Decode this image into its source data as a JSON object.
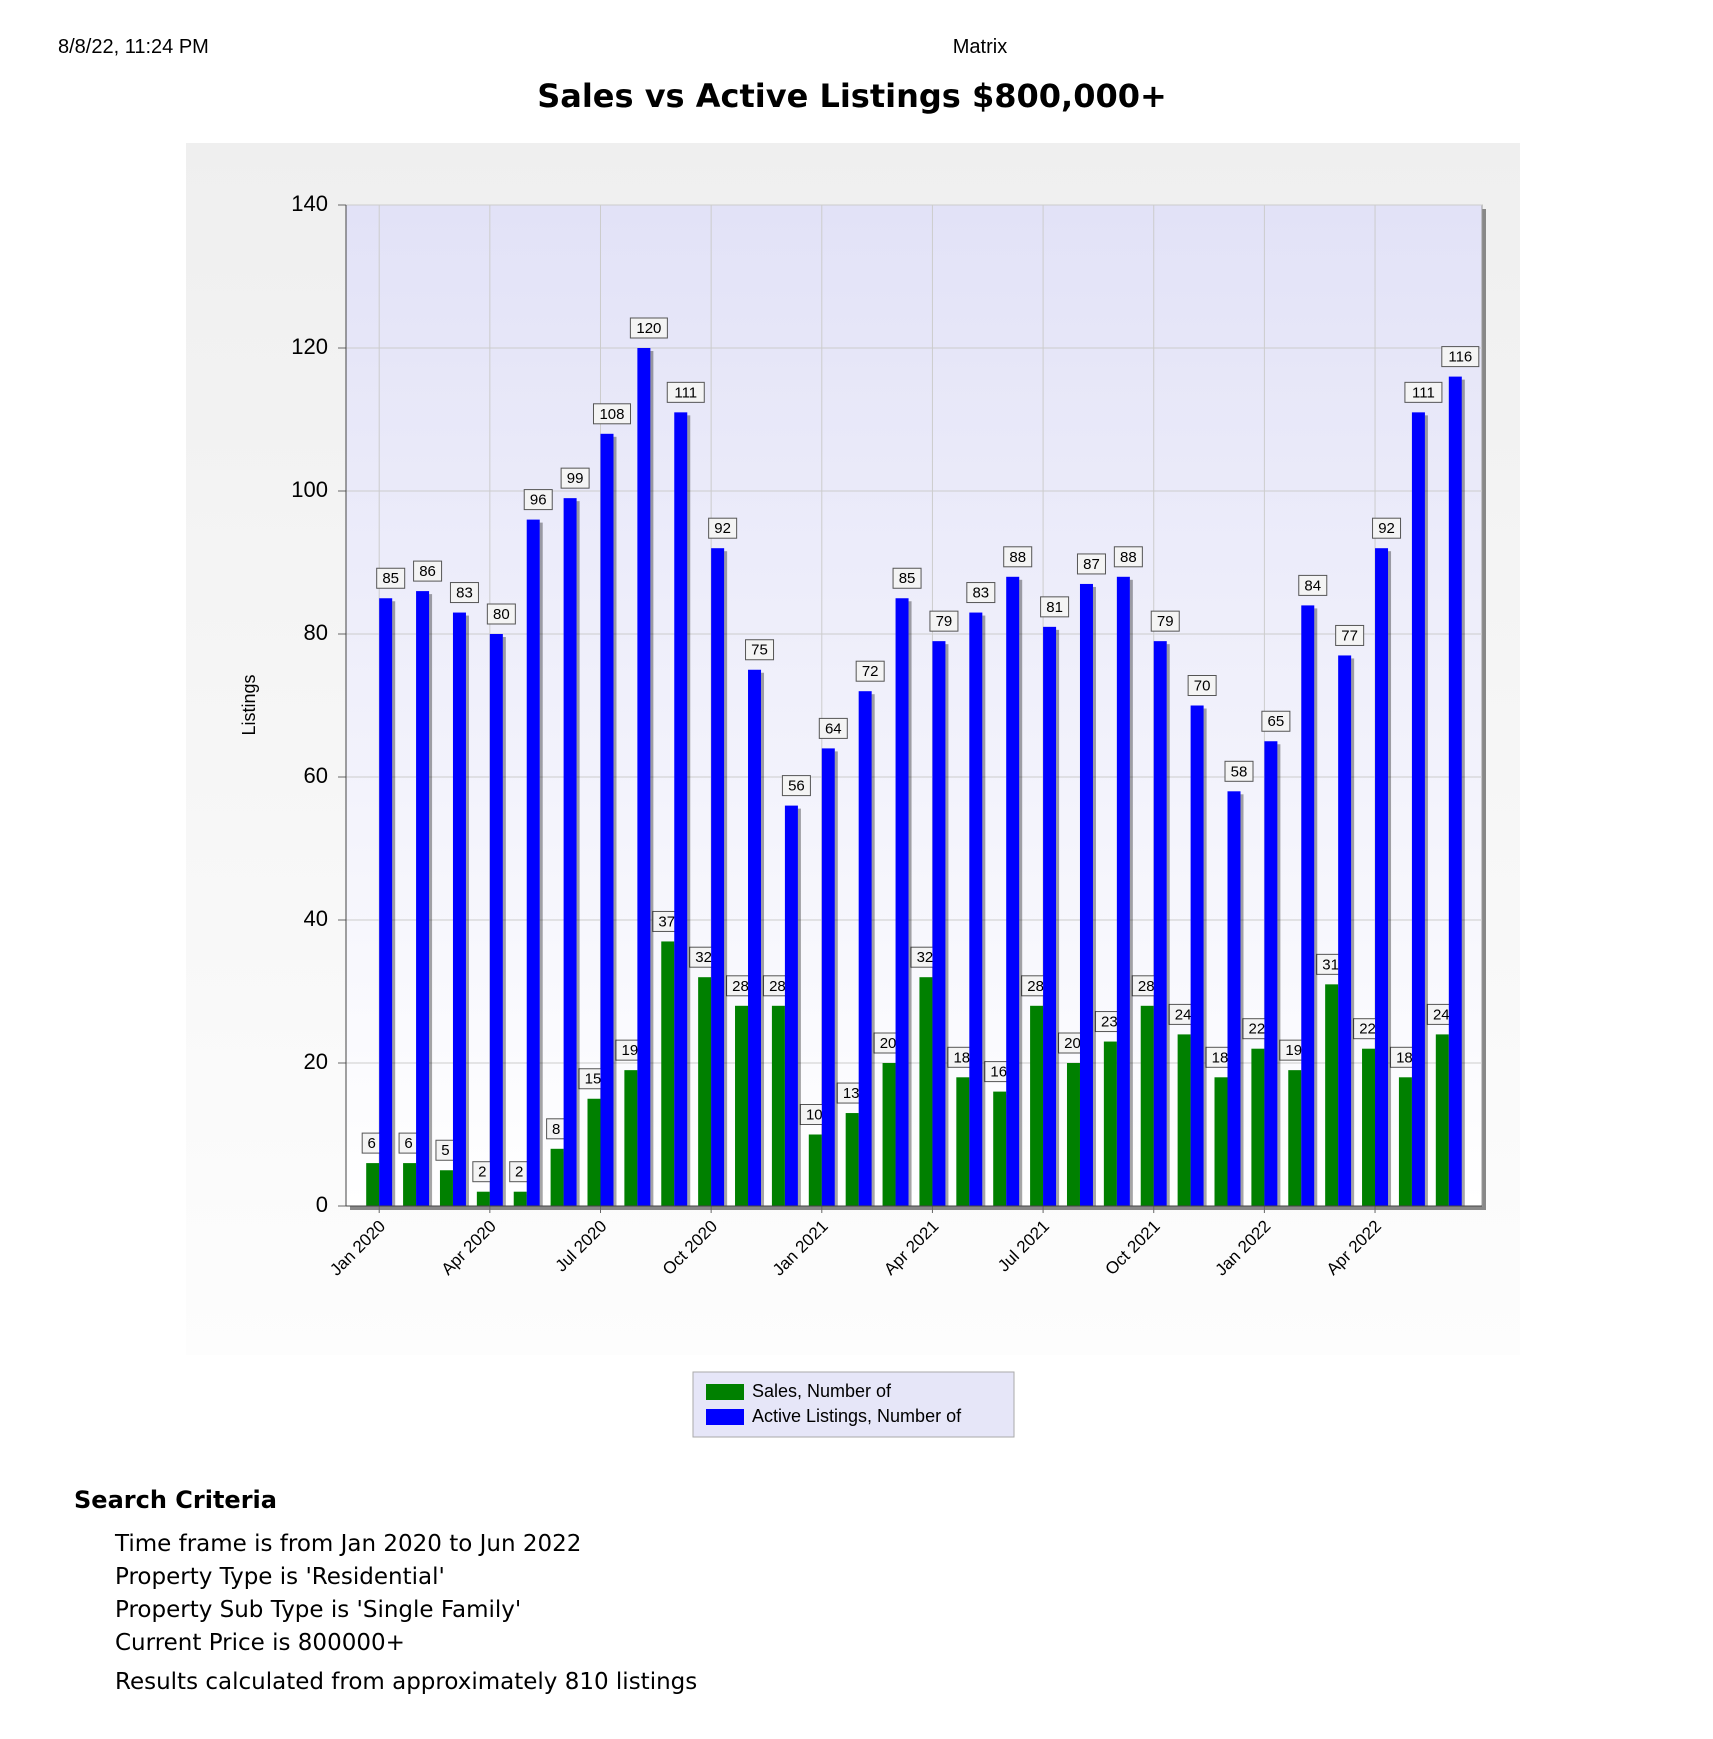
{
  "header": {
    "date": "8/8/22, 11:24 PM",
    "app": "Matrix"
  },
  "chart_data": {
    "type": "bar",
    "title": "Sales vs Active Listings $800,000+",
    "y_label": "Listings",
    "categories": [
      "Jan 2020",
      null,
      null,
      "Apr 2020",
      null,
      null,
      "Jul 2020",
      null,
      null,
      "Oct 2020",
      null,
      null,
      "Jan 2021",
      null,
      null,
      "Apr 2021",
      null,
      null,
      "Jul 2021",
      null,
      null,
      "Oct 2021",
      null,
      null,
      "Jan 2022",
      null,
      null,
      "Apr 2022",
      null,
      null
    ],
    "series": [
      {
        "name": "Sales, Number of",
        "color": "#008000",
        "values": [
          6,
          6,
          5,
          2,
          2,
          8,
          15,
          19,
          37,
          32,
          28,
          28,
          10,
          13,
          20,
          32,
          18,
          16,
          28,
          20,
          23,
          28,
          24,
          18,
          22,
          19,
          31,
          22,
          18,
          24
        ]
      },
      {
        "name": "Active Listings, Number of",
        "color": "#0000ff",
        "values": [
          85,
          86,
          83,
          80,
          96,
          99,
          108,
          120,
          111,
          92,
          75,
          56,
          64,
          72,
          85,
          79,
          83,
          88,
          81,
          87,
          88,
          79,
          70,
          58,
          65,
          84,
          77,
          92,
          111,
          116
        ]
      }
    ],
    "ylim": [
      0,
      140
    ],
    "yticks": [
      0,
      20,
      40,
      60,
      80,
      100,
      120,
      140
    ],
    "grid": true,
    "legend": "bottom"
  },
  "criteria": {
    "title": "Search Criteria",
    "lines": [
      "Time frame is from Jan 2020 to Jun 2022",
      "Property Type is 'Residential'",
      "Property Sub Type is 'Single Family'",
      "Current Price is 800000+"
    ],
    "result": "Results calculated from approximately 810 listings"
  }
}
